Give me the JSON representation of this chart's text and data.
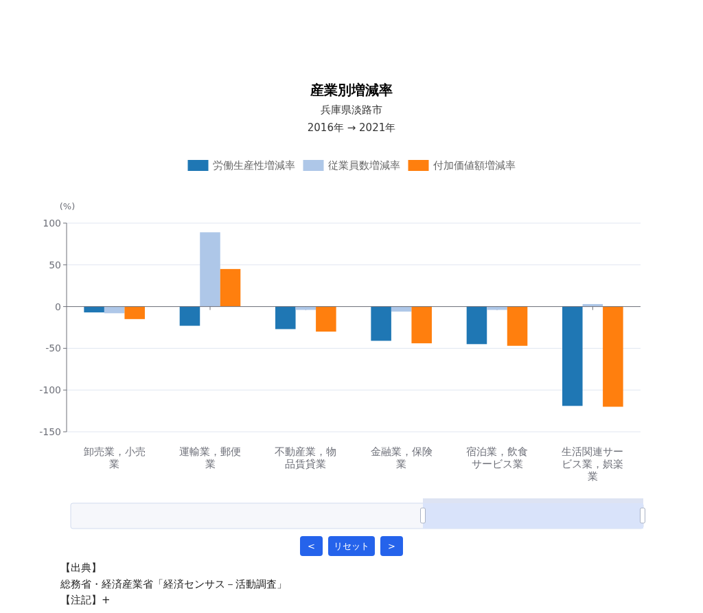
{
  "chart_data": {
    "type": "bar",
    "title": "産業別増減率",
    "subtitle": "兵庫県淡路市\n2016年 → 2021年",
    "ylabel": "(%)",
    "categories": [
      "卸売業，小売業",
      "運輸業，郵便業",
      "不動産業，物品賃貸業",
      "金融業，保険業",
      "宿泊業，飲食サービス業",
      "生活関連サービス業，娯楽業"
    ],
    "series": [
      {
        "name": "労働生産性増減率",
        "color": "#1f77b4",
        "values": [
          -7,
          -23,
          -27,
          -41,
          -45,
          -119
        ]
      },
      {
        "name": "従業員数増減率",
        "color": "#aec7e8",
        "values": [
          -8,
          89,
          -4,
          -6,
          -4,
          3
        ]
      },
      {
        "name": "付加価値額増減率",
        "color": "#ff7f0e",
        "values": [
          -15,
          45,
          -30,
          -44,
          -47,
          -120
        ]
      }
    ],
    "ylim": [
      -150,
      100
    ],
    "yticks": [
      -150,
      -100,
      -50,
      0,
      50,
      100
    ],
    "grid": "y",
    "legend": "top",
    "annotations": [
      "<",
      "リセット",
      ">",
      "【出典】",
      "総務省・経済産業省「経済センサス－活動調査」",
      "【注記】+"
    ]
  }
}
